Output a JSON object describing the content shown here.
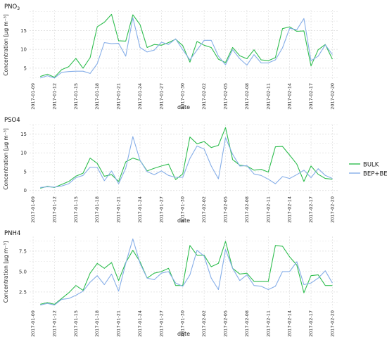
{
  "colors": {
    "bulk": "#2ebd4e",
    "bep_bem": "#86aee8",
    "grid": "#d9d9d9",
    "axis_text": "#333333"
  },
  "legend": {
    "entries": [
      {
        "label": "BULK",
        "color": "#2ebd4e"
      },
      {
        "label": "BEP+BEM",
        "color": "#86aee8"
      }
    ]
  },
  "chart_data": [
    {
      "type": "line",
      "title": "PNO3",
      "title_base": "PNO",
      "title_sub": "3",
      "xlabel": "date",
      "ylabel": "Concentration [µg m⁻³]",
      "ylim": [
        1.8,
        20.5
      ],
      "yticks": [
        5,
        10,
        15
      ],
      "xticks": [
        "2017-01-09",
        "2017-01-12",
        "2017-01-15",
        "2017-01-18",
        "2017-01-21",
        "2017-01-24",
        "2017-01-27",
        "2017-01-30",
        "2017-02-02",
        "2017-02-05",
        "2017-02-08",
        "2017-02-11",
        "2017-02-14",
        "2017-02-17",
        "2017-02-20"
      ],
      "x": [
        "2017-01-10",
        "2017-01-11",
        "2017-01-12",
        "2017-01-13",
        "2017-01-14",
        "2017-01-15",
        "2017-01-16",
        "2017-01-17",
        "2017-01-18",
        "2017-01-19",
        "2017-01-20",
        "2017-01-21",
        "2017-01-22",
        "2017-01-23",
        "2017-01-24",
        "2017-01-25",
        "2017-01-26",
        "2017-01-27",
        "2017-01-28",
        "2017-01-29",
        "2017-01-30",
        "2017-01-31",
        "2017-02-01",
        "2017-02-02",
        "2017-02-03",
        "2017-02-04",
        "2017-02-05",
        "2017-02-06",
        "2017-02-07",
        "2017-02-08",
        "2017-02-09",
        "2017-02-10",
        "2017-02-11",
        "2017-02-12",
        "2017-02-13",
        "2017-02-14",
        "2017-02-15",
        "2017-02-16",
        "2017-02-17",
        "2017-02-18",
        "2017-02-19",
        "2017-02-20"
      ],
      "series": [
        {
          "name": "BULK",
          "values": [
            2.8,
            3.4,
            2.6,
            4.6,
            5.4,
            7.6,
            5.0,
            7.8,
            16.0,
            17.2,
            19.3,
            12.3,
            12.2,
            19.2,
            16.6,
            10.5,
            11.3,
            11.1,
            11.8,
            12.7,
            11.0,
            6.6,
            12.1,
            11.1,
            10.5,
            7.4,
            6.5,
            10.5,
            8.3,
            7.5,
            9.9,
            7.2,
            7.0,
            7.8,
            15.5,
            16.0,
            14.8,
            14.9,
            5.6,
            9.9,
            11.3,
            7.4
          ]
        },
        {
          "name": "BEP+BEM",
          "values": [
            2.4,
            3.0,
            2.4,
            3.9,
            4.1,
            4.2,
            4.2,
            3.6,
            6.2,
            11.8,
            11.5,
            11.6,
            8.2,
            18.4,
            10.5,
            9.3,
            9.8,
            11.9,
            11.3,
            12.8,
            9.9,
            7.2,
            9.8,
            12.4,
            12.4,
            8.2,
            5.9,
            9.9,
            7.5,
            5.8,
            8.6,
            6.4,
            6.4,
            7.2,
            10.4,
            15.6,
            15.2,
            18.2,
            7.0,
            8.2,
            11.2,
            8.6
          ]
        }
      ]
    },
    {
      "type": "line",
      "title": "PSO4",
      "xlabel": "date",
      "ylabel": "Concentration [µg m⁻³]",
      "ylim": [
        -0.8,
        17.5
      ],
      "yticks": [
        0,
        5,
        10,
        15
      ],
      "xticks": [
        "2017-01-09",
        "2017-01-12",
        "2017-01-15",
        "2017-01-18",
        "2017-01-21",
        "2017-01-24",
        "2017-01-27",
        "2017-01-30",
        "2017-02-02",
        "2017-02-05",
        "2017-02-08",
        "2017-02-11",
        "2017-02-14",
        "2017-02-17",
        "2017-02-20"
      ],
      "x": [
        "2017-01-10",
        "2017-01-11",
        "2017-01-12",
        "2017-01-13",
        "2017-01-14",
        "2017-01-15",
        "2017-01-16",
        "2017-01-17",
        "2017-01-18",
        "2017-01-19",
        "2017-01-20",
        "2017-01-21",
        "2017-01-22",
        "2017-01-23",
        "2017-01-24",
        "2017-01-25",
        "2017-01-26",
        "2017-01-27",
        "2017-01-28",
        "2017-01-29",
        "2017-01-30",
        "2017-01-31",
        "2017-02-01",
        "2017-02-02",
        "2017-02-03",
        "2017-02-04",
        "2017-02-05",
        "2017-02-06",
        "2017-02-07",
        "2017-02-08",
        "2017-02-09",
        "2017-02-10",
        "2017-02-11",
        "2017-02-12",
        "2017-02-13",
        "2017-02-14",
        "2017-02-15",
        "2017-02-16",
        "2017-02-17",
        "2017-02-18",
        "2017-02-19",
        "2017-02-20"
      ],
      "series": [
        {
          "name": "BULK",
          "values": [
            0.6,
            1.1,
            0.8,
            1.6,
            2.4,
            3.8,
            4.6,
            8.6,
            7.2,
            3.8,
            4.2,
            2.4,
            7.6,
            8.6,
            8.0,
            5.2,
            5.9,
            6.5,
            7.0,
            2.9,
            4.4,
            14.2,
            12.4,
            13.0,
            11.4,
            12.0,
            16.7,
            8.2,
            6.7,
            6.5,
            5.4,
            5.6,
            4.9,
            11.6,
            11.7,
            9.4,
            7.0,
            2.4,
            6.5,
            4.3,
            3.2,
            3.0
          ]
        },
        {
          "name": "BEP+BEM",
          "values": [
            0.8,
            1.0,
            0.9,
            1.2,
            1.8,
            3.4,
            4.0,
            6.2,
            6.1,
            2.6,
            5.2,
            1.8,
            5.9,
            14.3,
            8.0,
            5.0,
            4.2,
            5.2,
            4.0,
            3.5,
            3.5,
            8.5,
            11.8,
            11.0,
            6.5,
            3.1,
            14.0,
            9.6,
            6.5,
            6.6,
            4.4,
            4.0,
            3.0,
            1.8,
            3.7,
            3.2,
            4.2,
            5.4,
            3.4,
            5.8,
            4.0,
            3.2
          ]
        }
      ]
    },
    {
      "type": "line",
      "title": "PNH4",
      "xlabel": "date",
      "ylabel": "Concentration [µg m⁻³]",
      "ylim": [
        0.6,
        9.3
      ],
      "yticks": [
        2.5,
        5.0,
        7.5
      ],
      "xticks": [
        "2017-01-09",
        "2017-01-12",
        "2017-01-15",
        "2017-01-18",
        "2017-01-21",
        "2017-01-24",
        "2017-01-27",
        "2017-01-30",
        "2017-02-02",
        "2017-02-05",
        "2017-02-08",
        "2017-02-11",
        "2017-02-14",
        "2017-02-17",
        "2017-02-20"
      ],
      "x": [
        "2017-01-10",
        "2017-01-11",
        "2017-01-12",
        "2017-01-13",
        "2017-01-14",
        "2017-01-15",
        "2017-01-16",
        "2017-01-17",
        "2017-01-18",
        "2017-01-19",
        "2017-01-20",
        "2017-01-21",
        "2017-01-22",
        "2017-01-23",
        "2017-01-24",
        "2017-01-25",
        "2017-01-26",
        "2017-01-27",
        "2017-01-28",
        "2017-01-29",
        "2017-01-30",
        "2017-01-31",
        "2017-02-01",
        "2017-02-02",
        "2017-02-03",
        "2017-02-04",
        "2017-02-05",
        "2017-02-06",
        "2017-02-07",
        "2017-02-08",
        "2017-02-09",
        "2017-02-10",
        "2017-02-11",
        "2017-02-12",
        "2017-02-13",
        "2017-02-14",
        "2017-02-15",
        "2017-02-16",
        "2017-02-17",
        "2017-02-18",
        "2017-02-19",
        "2017-02-20"
      ],
      "series": [
        {
          "name": "BULK",
          "values": [
            1.0,
            1.2,
            1.0,
            1.7,
            2.4,
            3.3,
            2.7,
            4.8,
            6.0,
            5.4,
            6.1,
            3.9,
            6.1,
            7.6,
            6.2,
            4.2,
            4.8,
            5.0,
            5.4,
            3.3,
            3.3,
            8.2,
            7.0,
            7.0,
            5.6,
            6.0,
            8.7,
            5.4,
            4.7,
            4.8,
            3.8,
            3.8,
            3.8,
            8.2,
            8.1,
            6.8,
            5.8,
            2.4,
            4.5,
            4.6,
            3.3,
            3.3
          ]
        },
        {
          "name": "BEP+BEM",
          "values": [
            0.9,
            1.1,
            0.9,
            1.6,
            1.7,
            2.1,
            2.6,
            3.7,
            4.5,
            3.4,
            4.7,
            2.6,
            6.0,
            9.0,
            6.0,
            4.2,
            4.0,
            4.8,
            5.0,
            3.6,
            3.2,
            4.6,
            7.6,
            6.9,
            4.2,
            2.8,
            7.7,
            5.4,
            3.9,
            4.6,
            3.3,
            3.2,
            2.8,
            3.2,
            5.0,
            5.0,
            6.2,
            3.4,
            3.6,
            4.2,
            5.1,
            3.6
          ]
        }
      ]
    }
  ]
}
